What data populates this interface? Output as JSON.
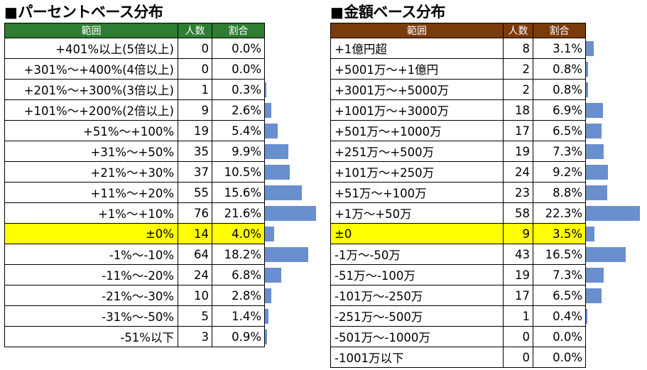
{
  "left": {
    "title": "パーセントベース分布",
    "headers": {
      "range": "範囲",
      "count": "人数",
      "ratio": "割合"
    },
    "header_color": "#2e7d32",
    "rows": [
      {
        "range": "+401%以上(5倍以上)",
        "count": "0",
        "ratio": "0.0%",
        "value": 0.0
      },
      {
        "range": "+301%～+400%(4倍以上)",
        "count": "0",
        "ratio": "0.0%",
        "value": 0.0
      },
      {
        "range": "+201%～+300%(3倍以上)",
        "count": "1",
        "ratio": "0.3%",
        "value": 0.3
      },
      {
        "range": "+101%～+200%(2倍以上)",
        "count": "9",
        "ratio": "2.6%",
        "value": 2.6
      },
      {
        "range": "+51%～+100%",
        "count": "19",
        "ratio": "5.4%",
        "value": 5.4
      },
      {
        "range": "+31%～+50%",
        "count": "35",
        "ratio": "9.9%",
        "value": 9.9
      },
      {
        "range": "+21%～+30%",
        "count": "37",
        "ratio": "10.5%",
        "value": 10.5
      },
      {
        "range": "+11%～+20%",
        "count": "55",
        "ratio": "15.6%",
        "value": 15.6
      },
      {
        "range": "+1%～+10%",
        "count": "76",
        "ratio": "21.6%",
        "value": 21.6
      },
      {
        "range": "±0%",
        "count": "14",
        "ratio": "4.0%",
        "value": 4.0,
        "highlight": true
      },
      {
        "range": "-1%～-10%",
        "count": "64",
        "ratio": "18.2%",
        "value": 18.2
      },
      {
        "range": "-11%～-20%",
        "count": "24",
        "ratio": "6.8%",
        "value": 6.8
      },
      {
        "range": "-21%～-30%",
        "count": "10",
        "ratio": "2.8%",
        "value": 2.8
      },
      {
        "range": "-31%～-50%",
        "count": "5",
        "ratio": "1.4%",
        "value": 1.4
      },
      {
        "range": "-51%以下",
        "count": "3",
        "ratio": "0.9%",
        "value": 0.9
      }
    ]
  },
  "right": {
    "title": "金額ベース分布",
    "headers": {
      "range": "範囲",
      "count": "人数",
      "ratio": "割合"
    },
    "header_color": "#7b3a0a",
    "rows": [
      {
        "range": "+1億円超",
        "count": "8",
        "ratio": "3.1%",
        "value": 3.1
      },
      {
        "range": "+5001万～+1億円",
        "count": "2",
        "ratio": "0.8%",
        "value": 0.8
      },
      {
        "range": "+3001万～+5000万",
        "count": "2",
        "ratio": "0.8%",
        "value": 0.8
      },
      {
        "range": "+1001万～+3000万",
        "count": "18",
        "ratio": "6.9%",
        "value": 6.9
      },
      {
        "range": "+501万～+1000万",
        "count": "17",
        "ratio": "6.5%",
        "value": 6.5
      },
      {
        "range": "+251万～+500万",
        "count": "19",
        "ratio": "7.3%",
        "value": 7.3
      },
      {
        "range": "+101万～+250万",
        "count": "24",
        "ratio": "9.2%",
        "value": 9.2
      },
      {
        "range": "+51万～+100万",
        "count": "23",
        "ratio": "8.8%",
        "value": 8.8
      },
      {
        "range": "+1万～+50万",
        "count": "58",
        "ratio": "22.3%",
        "value": 22.3
      },
      {
        "range": "±0",
        "count": "9",
        "ratio": "3.5%",
        "value": 3.5,
        "highlight": true
      },
      {
        "range": "-1万～-50万",
        "count": "43",
        "ratio": "16.5%",
        "value": 16.5
      },
      {
        "range": "-51万～-100万",
        "count": "19",
        "ratio": "7.3%",
        "value": 7.3
      },
      {
        "range": "-101万～-250万",
        "count": "17",
        "ratio": "6.5%",
        "value": 6.5
      },
      {
        "range": "-251万～-500万",
        "count": "1",
        "ratio": "0.4%",
        "value": 0.4
      },
      {
        "range": "-501万～-1000万",
        "count": "0",
        "ratio": "0.0%",
        "value": 0.0
      },
      {
        "range": "-1001万以下",
        "count": "0",
        "ratio": "0.0%",
        "value": 0.0
      }
    ]
  },
  "bar_color": "#6a8fcf",
  "highlight_color": "#ffff00"
}
